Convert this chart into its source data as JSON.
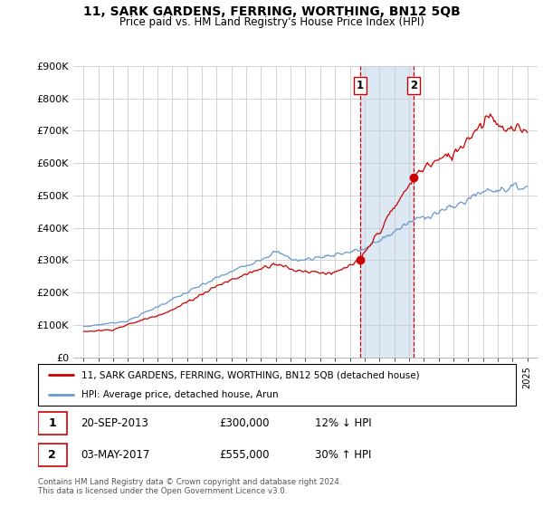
{
  "title": "11, SARK GARDENS, FERRING, WORTHING, BN12 5QB",
  "subtitle": "Price paid vs. HM Land Registry's House Price Index (HPI)",
  "yticks": [
    0,
    100000,
    200000,
    300000,
    400000,
    500000,
    600000,
    700000,
    800000,
    900000
  ],
  "ytick_labels": [
    "£0",
    "£100K",
    "£200K",
    "£300K",
    "£400K",
    "£500K",
    "£600K",
    "£700K",
    "£800K",
    "£900K"
  ],
  "transaction1_year": 2013.71,
  "transaction1_price": 300000,
  "transaction1_date": "20-SEP-2013",
  "transaction1_pct": "12% ↓ HPI",
  "transaction2_year": 2017.33,
  "transaction2_price": 555000,
  "transaction2_date": "03-MAY-2017",
  "transaction2_pct": "30% ↑ HPI",
  "legend_line1": "11, SARK GARDENS, FERRING, WORTHING, BN12 5QB (detached house)",
  "legend_line2": "HPI: Average price, detached house, Arun",
  "footer": "Contains HM Land Registry data © Crown copyright and database right 2024.\nThis data is licensed under the Open Government Licence v3.0.",
  "property_color": "#cc0000",
  "hpi_color": "#6699cc",
  "highlight_fill": "#dce9f5",
  "highlight_border": "#cc0000"
}
